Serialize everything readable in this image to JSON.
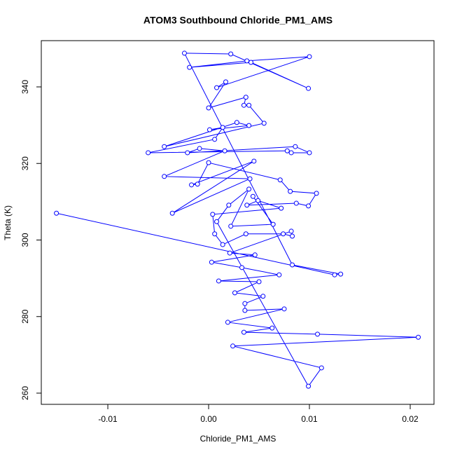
{
  "chart_data": {
    "type": "line",
    "title": "ATOM3 Southbound Chloride_PM1_AMS",
    "x_label": "Chloride_PM1_AMS",
    "y_label": "Theta (K)",
    "series": [
      {
        "name": "Chloride_PM1_AMS",
        "color": "#0000ff",
        "x": [
          -0.0151,
          0.0125,
          0.0131,
          0.0083,
          -0.0024,
          0.0022,
          0.0099,
          0.0042,
          -0.0019,
          0.0038,
          0.01,
          0.0008,
          0.0017,
          0.0,
          0.0037,
          0.0035,
          0.004,
          0.0055,
          -0.0044,
          0.0028,
          0.004,
          0.0001,
          0.0014,
          0.0006,
          -0.006,
          0.0078,
          0.0082,
          0.01,
          0.0086,
          -0.0021,
          -0.0009,
          0.0016,
          -0.0044,
          0.0041,
          -0.0036,
          0.0045,
          -0.0017,
          -0.0011,
          0.0,
          0.0071,
          0.0081,
          0.0107,
          0.0099,
          0.0087,
          0.0038,
          0.0049,
          0.0072,
          0.0004,
          0.0006,
          0.0014,
          0.0037,
          0.0074,
          0.0083,
          0.0082,
          0.0021,
          0.0046,
          0.0003,
          0.0033,
          0.007,
          0.001,
          0.005,
          0.0026,
          0.0054,
          0.0036,
          0.0036,
          0.0075,
          0.0019,
          0.0063,
          0.0035,
          0.0108,
          0.0208,
          0.0024,
          0.0112,
          0.0099,
          0.0008,
          0.002,
          0.004,
          0.0022,
          0.0064,
          0.0044
        ],
        "values": [
          307.0,
          290.9,
          291.1,
          293.5,
          348.8,
          348.6,
          339.6,
          346.4,
          345.1,
          346.8,
          347.9,
          339.8,
          341.3,
          334.5,
          337.3,
          335.2,
          335.2,
          330.5,
          324.4,
          330.7,
          329.9,
          328.8,
          329.4,
          326.3,
          322.8,
          323.3,
          322.8,
          322.8,
          324.4,
          322.8,
          323.9,
          323.3,
          316.6,
          316.0,
          307.0,
          320.6,
          314.4,
          314.6,
          320.2,
          315.7,
          312.7,
          312.2,
          308.9,
          309.6,
          309.1,
          310.3,
          308.3,
          306.7,
          301.6,
          298.8,
          301.6,
          301.6,
          301.0,
          302.3,
          296.6,
          296.1,
          294.2,
          292.8,
          290.9,
          289.3,
          289.1,
          286.2,
          285.3,
          283.4,
          281.6,
          282.0,
          278.5,
          277.0,
          275.9,
          275.4,
          274.6,
          272.3,
          266.6,
          261.8,
          304.8,
          309.1,
          313.3,
          303.6,
          304.1,
          311.4
        ]
      }
    ],
    "xlim": [
      -0.0166,
      0.02236
    ],
    "ylim": [
      257.07,
      352.08
    ],
    "xticks": [
      -0.01,
      {
        "value": 0,
        "label": "0.00"
      },
      0.01,
      0.02
    ],
    "yticks": [
      260,
      280,
      300,
      320,
      340
    ]
  }
}
